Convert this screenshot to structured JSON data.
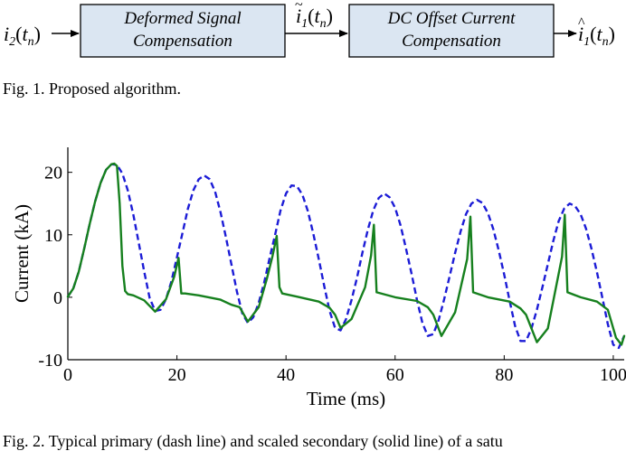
{
  "diagram": {
    "block1": {
      "line1": "Deformed Signal",
      "line2": "Compensation"
    },
    "block2": {
      "line1": "DC Offset Current",
      "line2": "Compensation"
    },
    "input_signal": {
      "base": "i",
      "sub": "2",
      "arg": "t",
      "argsub": "n"
    },
    "mid_signal": {
      "base": "i",
      "accent": "~",
      "sub": "1",
      "arg": "t",
      "argsub": "n"
    },
    "output_signal": {
      "base": "i",
      "accent": "^",
      "sub": "1",
      "arg": "t",
      "argsub": "n"
    }
  },
  "fig1_caption": "Fig. 1.   Proposed algorithm.",
  "fig2_caption": "Fig. 2.   Typical primary (dash line) and scaled secondary (solid line) of a satu",
  "chart_data": {
    "type": "line",
    "xlabel": "Time (ms)",
    "ylabel": "Current (kA)",
    "xlim": [
      0,
      102
    ],
    "ylim": [
      -10,
      24
    ],
    "xticks": [
      0,
      20,
      40,
      60,
      80,
      100
    ],
    "yticks": [
      -10,
      0,
      10,
      20
    ],
    "grid": false,
    "series": [
      {
        "style": "dash",
        "color": "#1c1cd6",
        "x": [
          0,
          1,
          2,
          3,
          4,
          5,
          6,
          7,
          8,
          9,
          10,
          11,
          12,
          13,
          14,
          15,
          16,
          17,
          18,
          19,
          20,
          21,
          22,
          23,
          24,
          25,
          26,
          27,
          28,
          29,
          30,
          31,
          32,
          33,
          34,
          35,
          36,
          37,
          38,
          39,
          40,
          41,
          42,
          43,
          44,
          45,
          46,
          47,
          48,
          49,
          50,
          51,
          52,
          53,
          54,
          55,
          56,
          57,
          58,
          59,
          60,
          61,
          62,
          63,
          64,
          65,
          66,
          67,
          68,
          69,
          70,
          71,
          72,
          73,
          74,
          75,
          76,
          77,
          78,
          79,
          80,
          81,
          82,
          83,
          84,
          85,
          86,
          87,
          88,
          89,
          90,
          91,
          92,
          93,
          94,
          95,
          96,
          97,
          98,
          99,
          100,
          101,
          102
        ],
        "y": [
          0.1,
          1.4,
          4.1,
          7.8,
          11.7,
          15.3,
          18.3,
          20.4,
          21.3,
          21.2,
          19.8,
          17.1,
          13.2,
          8.7,
          4.1,
          -0.1,
          -2.2,
          -2.0,
          -0.3,
          2.6,
          6.4,
          10.2,
          14.1,
          17.1,
          18.9,
          19.5,
          18.9,
          16.9,
          13.6,
          9.5,
          5.2,
          0.9,
          -2.6,
          -4.1,
          -3.2,
          -0.9,
          2.4,
          6.3,
          10.0,
          13.9,
          16.6,
          17.9,
          17.8,
          16.4,
          13.8,
          10.2,
          6.1,
          1.8,
          -2.2,
          -4.9,
          -5.3,
          -3.5,
          -0.5,
          3.1,
          7.1,
          10.8,
          13.9,
          15.9,
          16.6,
          16.0,
          14.3,
          11.5,
          7.8,
          3.8,
          -0.4,
          -4.1,
          -6.2,
          -5.9,
          -3.6,
          -0.3,
          3.4,
          7.1,
          10.5,
          13.3,
          15.0,
          15.6,
          15.1,
          13.5,
          10.9,
          7.5,
          3.6,
          -0.6,
          -4.6,
          -7.0,
          -7.0,
          -5.0,
          -2.0,
          1.6,
          5.3,
          9.0,
          12.2,
          14.2,
          15.0,
          14.6,
          13.3,
          11.0,
          7.8,
          4.0,
          -0.1,
          -4.3,
          -7.6,
          -8.1,
          -6.2
        ]
      },
      {
        "style": "solid",
        "color": "#16801e",
        "x": [
          0,
          1,
          2,
          3,
          4,
          5,
          6,
          7,
          8,
          8.5,
          9.0,
          9.5,
          10.0,
          10.5,
          11.0,
          12,
          14,
          16,
          18,
          19.5,
          20.3,
          20.8,
          21.5,
          24,
          28,
          30,
          31.5,
          33,
          35,
          36.5,
          37.5,
          38.3,
          38.8,
          39.3,
          42,
          46,
          48,
          49,
          50,
          52,
          54.5,
          55.6,
          56.1,
          56.6,
          60,
          64,
          66,
          67,
          68.5,
          71,
          73.2,
          73.8,
          74.3,
          77,
          81,
          83,
          84,
          86,
          88,
          90.6,
          91.1,
          91.6,
          94,
          97,
          99,
          100.5,
          101.5,
          102
        ],
        "y": [
          0.1,
          1.4,
          4.1,
          7.8,
          11.7,
          15.3,
          18.3,
          20.4,
          21.3,
          21.4,
          21.0,
          15.0,
          5.0,
          1.0,
          0.5,
          0.3,
          -0.5,
          -2.3,
          -0.3,
          3.3,
          6.3,
          0.6,
          0.6,
          0.3,
          -0.4,
          -1.2,
          -1.6,
          -3.9,
          -1.6,
          3.0,
          6.5,
          9.8,
          1.6,
          0.6,
          0.1,
          -0.7,
          -1.7,
          -2.8,
          -4.9,
          -3.5,
          1.6,
          6.7,
          11.6,
          0.8,
          0.0,
          -0.6,
          -1.6,
          -2.8,
          -6.2,
          -2.4,
          6.1,
          12.9,
          0.8,
          0.0,
          -0.7,
          -1.8,
          -2.8,
          -7.2,
          -5.0,
          6.5,
          13.2,
          0.8,
          0.0,
          -0.7,
          -2.0,
          -6.5,
          -7.6,
          -6.2
        ]
      }
    ]
  }
}
